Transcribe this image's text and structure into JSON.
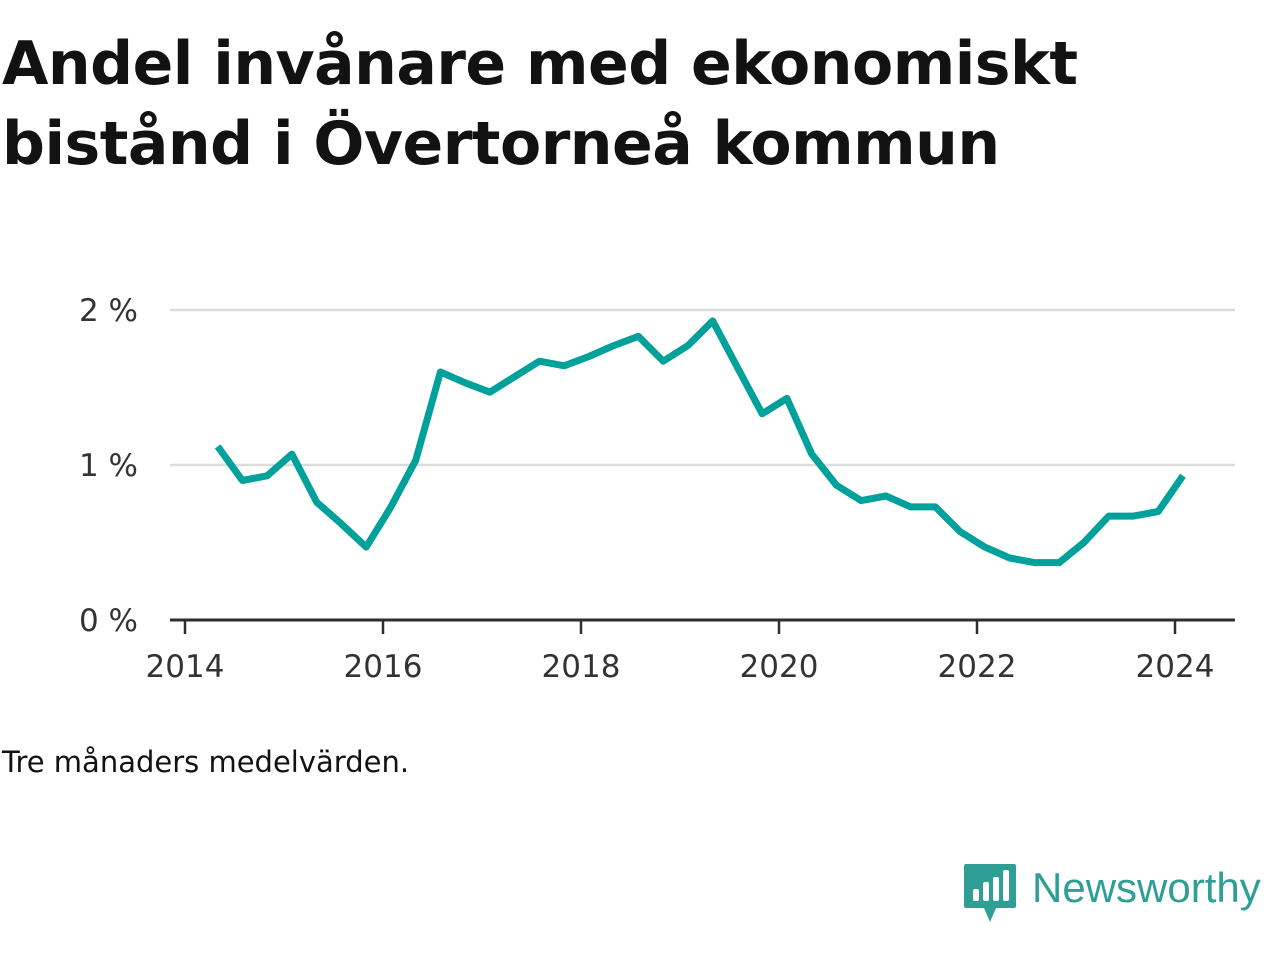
{
  "title": "Andel invånare med ekonomiskt bistånd i Övertorneå kommun",
  "note": "Tre månaders medelvärden.",
  "brand": {
    "name": "Newsworthy",
    "icon": "newsworthy-logo-icon",
    "color": "#2f9f96"
  },
  "chart_data": {
    "type": "line",
    "title": "Andel invånare med ekonomiskt bistånd i Övertorneå kommun",
    "xlabel": "",
    "ylabel": "",
    "xlim": [
      2014,
      2024.5
    ],
    "ylim": [
      0,
      2
    ],
    "x_ticks": [
      "2014",
      "2016",
      "2018",
      "2020",
      "2022",
      "2024"
    ],
    "y_ticks": [
      "0 %",
      "1 %",
      "2 %"
    ],
    "grid": true,
    "color": "#00a19a",
    "series": [
      {
        "x": [
          2014.33,
          2014.58,
          2014.83,
          2015.08,
          2015.33,
          2015.58,
          2015.83,
          2016.08,
          2016.33,
          2016.58,
          2016.83,
          2017.08,
          2017.33,
          2017.58,
          2017.83,
          2018.08,
          2018.33,
          2018.58,
          2018.83,
          2019.08,
          2019.33,
          2019.58,
          2019.83,
          2020.08,
          2020.33,
          2020.58,
          2020.83,
          2021.08,
          2021.33,
          2021.58,
          2021.83,
          2022.08,
          2022.33,
          2022.58,
          2022.83,
          2023.08,
          2023.33,
          2023.58,
          2023.83,
          2024.08
        ],
        "values": [
          1.12,
          0.9,
          0.93,
          1.07,
          0.76,
          0.62,
          0.47,
          0.73,
          1.03,
          1.6,
          1.53,
          1.47,
          1.57,
          1.67,
          1.64,
          1.7,
          1.77,
          1.83,
          1.67,
          1.77,
          1.93,
          1.63,
          1.33,
          1.43,
          1.07,
          0.87,
          0.77,
          0.8,
          0.73,
          0.73,
          0.57,
          0.47,
          0.4,
          0.37,
          0.37,
          0.5,
          0.67,
          0.67,
          0.7,
          0.93
        ]
      }
    ]
  }
}
